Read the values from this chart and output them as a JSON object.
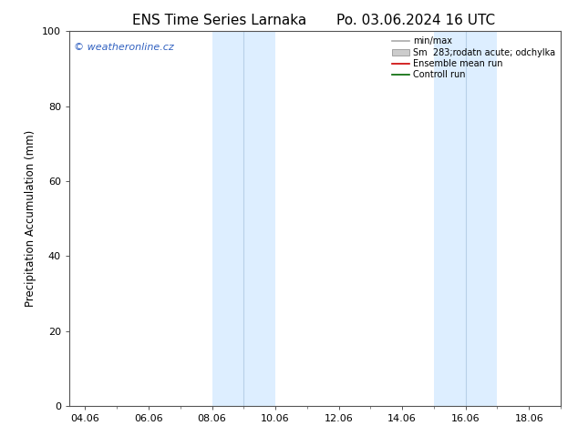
{
  "title_left": "ENS Time Series Larnaka",
  "title_right": "Po. 03.06.2024 16 UTC",
  "ylabel": "Precipitation Accumulation (mm)",
  "ylim": [
    0,
    100
  ],
  "yticks": [
    0,
    20,
    40,
    60,
    80,
    100
  ],
  "xtick_labels": [
    "04.06",
    "06.06",
    "08.06",
    "10.06",
    "12.06",
    "14.06",
    "16.06",
    "18.06"
  ],
  "xtick_positions": [
    4,
    6,
    8,
    10,
    12,
    14,
    16,
    18
  ],
  "shaded_regions": [
    {
      "xmin": 8.0,
      "xmax": 9.0,
      "color": "#ddeeff"
    },
    {
      "xmin": 9.0,
      "xmax": 10.0,
      "color": "#ddeeff"
    },
    {
      "xmin": 15.0,
      "xmax": 16.0,
      "color": "#ddeeff"
    },
    {
      "xmin": 16.0,
      "xmax": 17.0,
      "color": "#ddeeff"
    }
  ],
  "vertical_lines": [
    {
      "x": 9.0,
      "color": "#b8d0e8",
      "lw": 0.8
    },
    {
      "x": 16.0,
      "color": "#b8d0e8",
      "lw": 0.8
    }
  ],
  "watermark_text": "© weatheronline.cz",
  "watermark_color": "#3060c0",
  "legend_entries": [
    {
      "label": "min/max",
      "color": "#aaaaaa",
      "lw": 1.2,
      "type": "line"
    },
    {
      "label": "Sm  283;rodatn acute; odchylka",
      "color": "#cccccc",
      "lw": 5,
      "type": "patch"
    },
    {
      "label": "Ensemble mean run",
      "color": "#cc0000",
      "lw": 1.2,
      "type": "line"
    },
    {
      "label": "Controll run",
      "color": "#006600",
      "lw": 1.2,
      "type": "line"
    }
  ],
  "background_color": "#ffffff",
  "plot_bg_color": "#ffffff",
  "xmin": 3.5,
  "xmax": 19.0,
  "tick_fontsize": 8,
  "label_fontsize": 8.5,
  "title_fontsize": 11
}
